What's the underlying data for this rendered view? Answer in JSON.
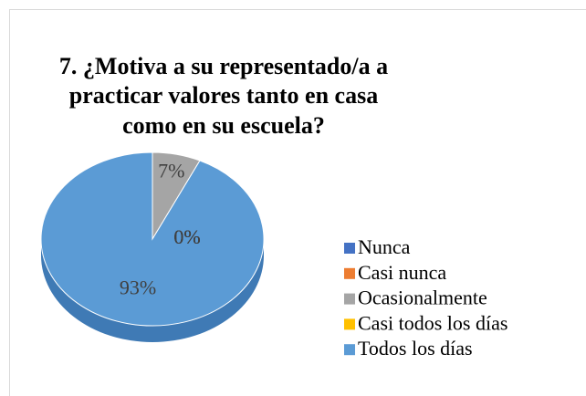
{
  "chart_data": {
    "type": "pie",
    "title": [
      "7. ¿Motiva a su representado/a a",
      "practicar valores tanto en casa",
      "como en su escuela?"
    ],
    "categories": [
      "Nunca",
      "Casi nunca",
      "Ocasionalmente",
      "Casi todos los días",
      "Todos los días"
    ],
    "values": [
      0,
      0,
      7,
      0,
      93
    ],
    "value_labels": [
      "0%",
      "0%",
      "7%",
      "0%",
      "93%"
    ],
    "colors": [
      "#4472c4",
      "#ed7d31",
      "#a5a5a5",
      "#ffc000",
      "#5b9bd5"
    ],
    "legend": "right"
  }
}
